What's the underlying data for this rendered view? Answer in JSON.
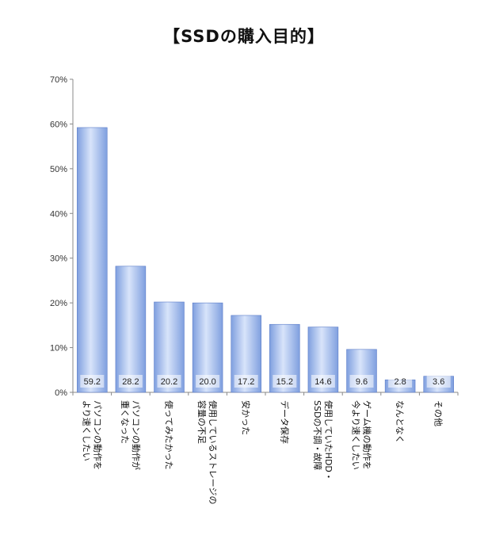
{
  "chart_data": {
    "type": "bar",
    "title": "【SSDの購入目的】",
    "categories": [
      [
        "パソコンの動作を",
        "より速くしたい"
      ],
      [
        "パソコンの動作が",
        "重くなった"
      ],
      [
        "使ってみたかった"
      ],
      [
        "使用しているストレージの",
        "容量の不足"
      ],
      [
        "安かった"
      ],
      [
        "データ保存"
      ],
      [
        "使用していたHDD・",
        "SSDの不調・故障"
      ],
      [
        "ゲーム機の動作を",
        "今より速くしたい"
      ],
      [
        "なんとなく"
      ],
      [
        "その他"
      ]
    ],
    "values": [
      59.2,
      28.2,
      20.2,
      20.0,
      17.2,
      15.2,
      14.6,
      9.6,
      2.8,
      3.6
    ],
    "value_labels": [
      "59.2",
      "28.2",
      "20.2",
      "20.0",
      "17.2",
      "15.2",
      "14.6",
      "9.6",
      "2.8",
      "3.6"
    ],
    "y_ticks": [
      "0%",
      "10%",
      "20%",
      "30%",
      "40%",
      "50%",
      "60%",
      "70%"
    ],
    "ylim": [
      0,
      70
    ],
    "xlabel": "",
    "ylabel": "",
    "grid": false,
    "legend": "none",
    "bar_color": "#7F9FDF",
    "bar_highlight": "#D8E4FA",
    "bar_edge": "#5A7BC8"
  }
}
